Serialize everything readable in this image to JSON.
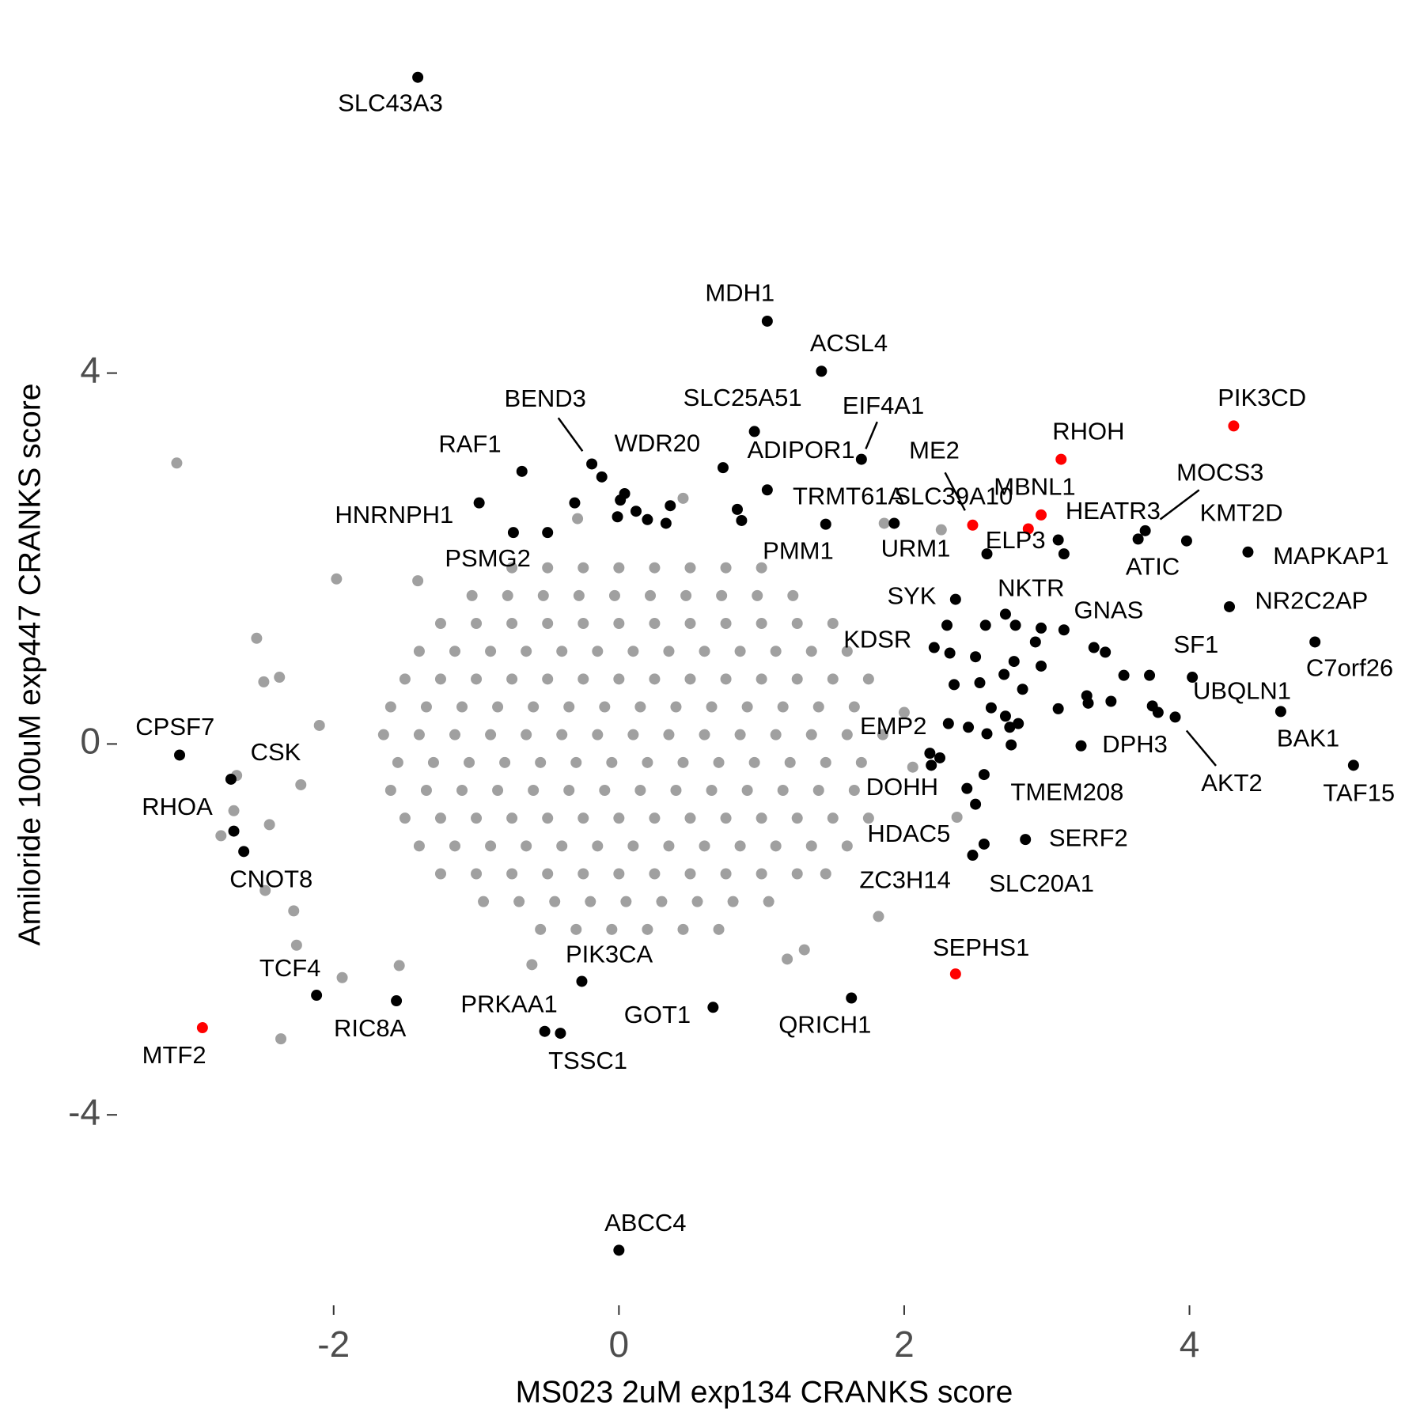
{
  "chart_data": {
    "type": "scatter",
    "xlabel": "MS023 2uM exp134 CRANKS score",
    "ylabel": "Amiloride 100uM exp447 CRANKS score",
    "xlim": [
      -3.51,
      5.55
    ],
    "ylim": [
      -5.76,
      7.33
    ],
    "xticks": [
      -2,
      0,
      2,
      4
    ],
    "yticks": [
      -4,
      0,
      4
    ],
    "series": [
      {
        "color": "#a0a0a0",
        "x": [
          -3.1,
          -1.98,
          -2.54,
          -2.38,
          -2.49,
          -2.68,
          -2.7,
          -2.79,
          -2.45,
          -2.48,
          -2.28,
          -2.26,
          -1.94,
          -2.37,
          -1.54,
          -0.61,
          1.18,
          1.3,
          1.82,
          2.37,
          2.26,
          1.86,
          0.45,
          -0.29,
          -1.41,
          -2.1,
          -2.23,
          2,
          2.06,
          -0.75,
          -0.5,
          -0.25,
          0,
          0.25,
          0.5,
          0.75,
          1.0,
          -1.03,
          -0.78,
          -0.53,
          -0.28,
          -0.03,
          0.22,
          0.47,
          0.72,
          0.97,
          1.22,
          -1.25,
          -1.0,
          -0.75,
          -0.5,
          -0.25,
          0,
          0.25,
          0.5,
          0.75,
          1.0,
          1.25,
          1.5,
          -1.4,
          -1.15,
          -0.9,
          -0.65,
          -0.4,
          -0.15,
          0.1,
          0.35,
          0.6,
          0.85,
          1.1,
          1.35,
          1.6,
          -1.5,
          -1.25,
          -1.0,
          -0.75,
          -0.5,
          -0.25,
          0,
          0.25,
          0.5,
          0.75,
          1.0,
          1.25,
          1.5,
          1.75,
          -1.6,
          -1.35,
          -1.1,
          -0.85,
          -0.6,
          -0.35,
          -0.1,
          0.15,
          0.4,
          0.65,
          0.9,
          1.15,
          1.4,
          1.65,
          -1.65,
          -1.4,
          -1.15,
          -0.9,
          -0.65,
          -0.4,
          -0.15,
          0.1,
          0.35,
          0.6,
          0.85,
          1.1,
          1.35,
          1.6,
          1.85,
          -1.55,
          -1.3,
          -1.05,
          -0.8,
          -0.55,
          -0.3,
          -0.05,
          0.2,
          0.45,
          0.7,
          0.95,
          1.2,
          1.45,
          1.7,
          -1.6,
          -1.35,
          -1.1,
          -0.85,
          -0.6,
          -0.35,
          -0.1,
          0.15,
          0.4,
          0.65,
          0.9,
          1.15,
          1.4,
          1.65,
          -1.5,
          -1.25,
          -1.0,
          -0.75,
          -0.5,
          -0.25,
          0,
          0.25,
          0.5,
          0.75,
          1.0,
          1.25,
          1.5,
          1.75,
          -1.4,
          -1.15,
          -0.9,
          -0.65,
          -0.4,
          -0.15,
          0.1,
          0.35,
          0.6,
          0.85,
          1.1,
          1.35,
          1.6,
          -1.25,
          -1.0,
          -0.75,
          -0.5,
          -0.25,
          0,
          0.25,
          0.5,
          0.75,
          1.0,
          1.25,
          1.45,
          -0.95,
          -0.7,
          -0.45,
          -0.2,
          0.05,
          0.3,
          0.55,
          0.8,
          1.05,
          -0.55,
          -0.3,
          -0.05,
          0.2,
          0.45,
          0.7
        ],
        "values": [
          3.03,
          1.78,
          1.14,
          0.72,
          0.67,
          -0.34,
          -0.72,
          -0.99,
          -0.87,
          -1.58,
          -1.8,
          -2.17,
          -2.52,
          -3.18,
          -2.39,
          -2.38,
          -2.32,
          -2.22,
          -1.86,
          -0.79,
          2.31,
          2.38,
          2.65,
          2.43,
          1.76,
          0.2,
          -0.44,
          0.34,
          -0.25,
          1.9,
          1.9,
          1.9,
          1.9,
          1.9,
          1.9,
          1.9,
          1.9,
          1.6,
          1.6,
          1.6,
          1.6,
          1.6,
          1.6,
          1.6,
          1.6,
          1.6,
          1.6,
          1.3,
          1.3,
          1.3,
          1.3,
          1.3,
          1.3,
          1.3,
          1.3,
          1.3,
          1.3,
          1.3,
          1.3,
          1.0,
          1.0,
          1.0,
          1.0,
          1.0,
          1.0,
          1.0,
          1.0,
          1.0,
          1.0,
          1.0,
          1.0,
          1.0,
          0.7,
          0.7,
          0.7,
          0.7,
          0.7,
          0.7,
          0.7,
          0.7,
          0.7,
          0.7,
          0.7,
          0.7,
          0.7,
          0.7,
          0.4,
          0.4,
          0.4,
          0.4,
          0.4,
          0.4,
          0.4,
          0.4,
          0.4,
          0.4,
          0.4,
          0.4,
          0.4,
          0.4,
          0.1,
          0.1,
          0.1,
          0.1,
          0.1,
          0.1,
          0.1,
          0.1,
          0.1,
          0.1,
          0.1,
          0.1,
          0.1,
          0.1,
          0.1,
          -0.2,
          -0.2,
          -0.2,
          -0.2,
          -0.2,
          -0.2,
          -0.2,
          -0.2,
          -0.2,
          -0.2,
          -0.2,
          -0.2,
          -0.2,
          -0.2,
          -0.5,
          -0.5,
          -0.5,
          -0.5,
          -0.5,
          -0.5,
          -0.5,
          -0.5,
          -0.5,
          -0.5,
          -0.5,
          -0.5,
          -0.5,
          -0.5,
          -0.8,
          -0.8,
          -0.8,
          -0.8,
          -0.8,
          -0.8,
          -0.8,
          -0.8,
          -0.8,
          -0.8,
          -0.8,
          -0.8,
          -0.8,
          -0.8,
          -1.1,
          -1.1,
          -1.1,
          -1.1,
          -1.1,
          -1.1,
          -1.1,
          -1.1,
          -1.1,
          -1.1,
          -1.1,
          -1.1,
          -1.1,
          -1.4,
          -1.4,
          -1.4,
          -1.4,
          -1.4,
          -1.4,
          -1.4,
          -1.4,
          -1.4,
          -1.4,
          -1.4,
          -1.4,
          -1.7,
          -1.7,
          -1.7,
          -1.7,
          -1.7,
          -1.7,
          -1.7,
          -1.7,
          -1.7,
          -2.0,
          -2.0,
          -2.0,
          -2.0,
          -2.0,
          -2.0
        ]
      },
      {
        "color": "#000000",
        "x": [
          -1.41,
          1.04,
          1.42,
          0.95,
          1.7,
          -0.19,
          0.73,
          -0.68,
          1.04,
          -0.98,
          1.45,
          1.93,
          3.08,
          3.64,
          3.69,
          3.98,
          4.41,
          -0.74,
          0.86,
          2.58,
          2.71,
          2.36,
          3.12,
          4.28,
          4.88,
          4.02,
          2.21,
          3.78,
          3.9,
          4.64,
          5.15,
          3.24,
          2.18,
          -3.08,
          -2.72,
          -2.7,
          -2.63,
          2.44,
          2.56,
          2.5,
          2.85,
          2.56,
          2.48,
          -2.12,
          -0.26,
          -1.56,
          -0.52,
          -0.41,
          0.66,
          1.63,
          0,
          -0.31,
          0.04,
          0.01,
          0.12,
          0.2,
          0.33,
          0.36,
          -0.01,
          -0.12,
          -0.5,
          0.83,
          2.3,
          2.57,
          2.78,
          2.96,
          3.33,
          3.41,
          2.32,
          2.5,
          2.77,
          2.92,
          2.96,
          2.35,
          2.53,
          2.7,
          2.83,
          2.61,
          2.71,
          2.8,
          3.08,
          3.28,
          3.29,
          3.45,
          3.54,
          3.72,
          3.74,
          2.31,
          2.45,
          2.58,
          2.74,
          2.75,
          2.25,
          2.19,
          3.12
        ],
        "values": [
          7.19,
          4.56,
          4.02,
          3.37,
          3.07,
          3.02,
          2.98,
          2.94,
          2.74,
          2.6,
          2.37,
          2.38,
          2.2,
          2.21,
          2.3,
          2.19,
          2.07,
          2.28,
          2.41,
          2.05,
          1.4,
          1.56,
          1.23,
          1.48,
          1.1,
          0.72,
          1.04,
          0.34,
          0.29,
          0.35,
          -0.23,
          -0.02,
          -0.1,
          -0.12,
          -0.38,
          -0.94,
          -1.16,
          -0.48,
          -0.33,
          -0.65,
          -1.03,
          -1.08,
          -1.2,
          -2.71,
          -2.56,
          -2.77,
          -3.1,
          -3.12,
          -2.84,
          -2.74,
          -5.46,
          2.6,
          2.7,
          2.63,
          2.51,
          2.42,
          2.38,
          2.57,
          2.45,
          2.88,
          2.28,
          2.53,
          1.28,
          1.28,
          1.28,
          1.25,
          1.04,
          0.99,
          0.98,
          0.94,
          0.89,
          1.1,
          0.84,
          0.64,
          0.66,
          0.75,
          0.59,
          0.39,
          0.3,
          0.22,
          0.38,
          0.52,
          0.44,
          0.46,
          0.74,
          0.74,
          0.41,
          0.22,
          0.18,
          0.11,
          0.18,
          -0.01,
          -0.15,
          -0.23,
          2.05
        ],
        "labels": [
          "SLC43A3",
          "MDH1",
          "ACSL4",
          "SLC25A51",
          "EIF4A1",
          "BEND3",
          "WDR20",
          "RAF1",
          "ADIPOR1",
          "HNRNPH1",
          "TRMT61A",
          "SLC39A10",
          "HEATR3",
          "ATIC",
          "MOCS3",
          "KMT2D",
          "MAPKAP1",
          "PSMG2",
          "PMM1",
          "URM1",
          "NKTR",
          "SYK",
          "GNAS",
          "NR2C2AP",
          "C7orf26",
          "SF1",
          "KDSR",
          "UBQLN1",
          "AKT2",
          "BAK1",
          "TAF15",
          "DPH3",
          "EMP2",
          "CPSF7",
          "CSK",
          "RHOA",
          "CNOT8",
          "DOHH",
          "TMEM208",
          "HDAC5",
          "SERF2",
          "SLC20A1",
          "ZC3H14",
          "TCF4",
          "PIK3CA",
          "RIC8A",
          "PRKAA1",
          "TSSC1",
          "GOT1",
          "QRICH1",
          "ABCC4",
          null,
          null,
          null,
          null,
          null,
          null,
          null,
          null,
          null,
          null,
          null,
          null,
          null,
          null,
          null,
          null,
          null,
          null,
          null,
          null,
          null,
          null,
          null,
          null,
          null,
          null,
          null,
          null,
          null,
          null,
          null,
          null,
          null,
          null,
          null,
          null,
          null,
          null,
          null,
          null,
          null,
          null,
          null,
          null
        ]
      },
      {
        "color": "#ff0000",
        "x": [
          4.31,
          3.1,
          2.48,
          2.96,
          2.87,
          2.36,
          -2.92
        ],
        "values": [
          3.43,
          3.07,
          2.36,
          2.47,
          2.32,
          -2.48,
          -3.06
        ],
        "labels": [
          "PIK3CD",
          "RHOH",
          "ME2",
          "MBNL1",
          "ELP3",
          "SEPHS1",
          "MTF2"
        ]
      }
    ]
  }
}
